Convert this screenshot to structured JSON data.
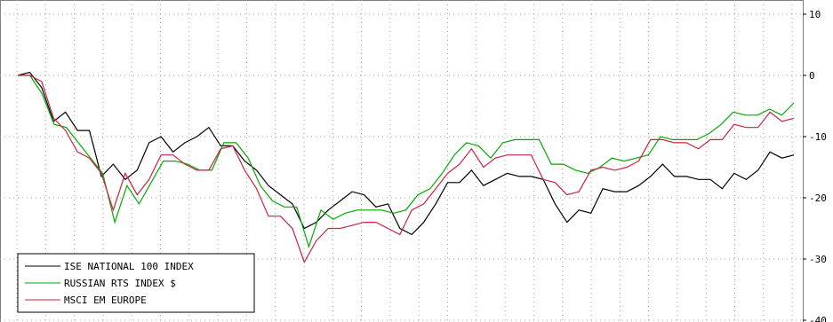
{
  "chart_data": {
    "type": "line",
    "title": "",
    "xlabel": "",
    "ylabel": "",
    "ylim": [
      -40,
      10
    ],
    "yticks": [
      10,
      0,
      -10,
      -20,
      -30,
      -40
    ],
    "ytick_labels": [
      "10",
      "0",
      "-10",
      "-20",
      "-30",
      "-40"
    ],
    "grid": true,
    "legend_position": "bottom-left",
    "series": [
      {
        "name": "ISE NATIONAL 100 INDEX",
        "color": "#000000",
        "values": [
          0,
          0.5,
          -2,
          -7.5,
          -6,
          -9,
          -9,
          -16.5,
          -14.5,
          -17,
          -15.5,
          -11,
          -10,
          -12.5,
          -11,
          -10,
          -8.5,
          -11.5,
          -11.5,
          -14,
          -15.5,
          -18,
          -19.5,
          -21,
          -25,
          -24,
          -22,
          -20.5,
          -19,
          -19.5,
          -21.5,
          -21,
          -25,
          -26,
          -24,
          -21,
          -17.5,
          -17.5,
          -15.5,
          -18,
          -17,
          -16,
          -16.5,
          -16.5,
          -17,
          -21,
          -24,
          -22,
          -22.5,
          -18.5,
          -19,
          -19,
          -18,
          -16.5,
          -14.5,
          -16.5,
          -16.5,
          -17,
          -17,
          -18.5,
          -16,
          -17,
          -15.5,
          -12.5,
          -13.5,
          -13
        ]
      },
      {
        "name": "RUSSIAN RTS INDEX $",
        "color": "#00aa00",
        "values": [
          0,
          0,
          -3,
          -8,
          -8.5,
          -11,
          -13.5,
          -16,
          -24,
          -18,
          -21,
          -17.5,
          -14,
          -14,
          -14.5,
          -15.5,
          -15.5,
          -11,
          -11,
          -13.5,
          -18,
          -20.5,
          -21.5,
          -21.5,
          -28,
          -22,
          -23.5,
          -22.5,
          -22,
          -22,
          -22,
          -22.5,
          -22,
          -19.5,
          -18.5,
          -16,
          -13,
          -11,
          -11.5,
          -13.5,
          -11,
          -10.5,
          -10.5,
          -10.5,
          -14.5,
          -14.5,
          -15.5,
          -16,
          -15,
          -13.5,
          -14,
          -13.5,
          -13,
          -10,
          -10.5,
          -10.5,
          -10.5,
          -9.5,
          -8,
          -6,
          -6.5,
          -6.5,
          -5.5,
          -6.5,
          -4.5
        ]
      },
      {
        "name": "MSCI EM EUROPE",
        "color": "#cc2244",
        "values": [
          0,
          0,
          -1,
          -7,
          -9,
          -12.5,
          -13.5,
          -16,
          -22,
          -16,
          -19.5,
          -17,
          -13,
          -13,
          -14.5,
          -15.5,
          -15.5,
          -12,
          -11.5,
          -15.5,
          -18.5,
          -23,
          -23,
          -25,
          -30.5,
          -27,
          -25,
          -25,
          -24.5,
          -24,
          -24,
          -25,
          -26,
          -22,
          -21,
          -18.5,
          -16,
          -14.5,
          -12,
          -15,
          -13.5,
          -13,
          -13,
          -13,
          -17,
          -17.5,
          -19.5,
          -19,
          -15.5,
          -15,
          -15.5,
          -15,
          -14,
          -10.5,
          -10.5,
          -11,
          -11,
          -12,
          -10.5,
          -10.5,
          -8,
          -8.5,
          -8.5,
          -6,
          -7.5,
          -7
        ]
      }
    ]
  }
}
